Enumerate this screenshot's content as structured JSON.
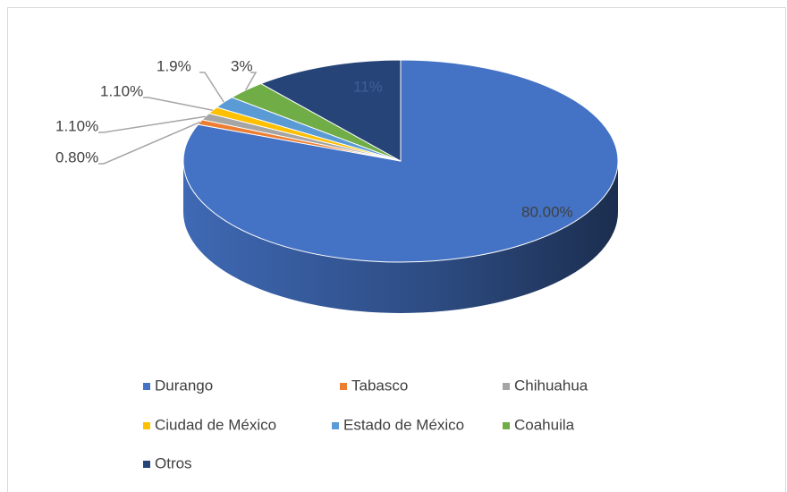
{
  "chart_data": {
    "type": "pie",
    "categories": [
      "Durango",
      "Tabasco",
      "Chihuahua",
      "Ciudad de México",
      "Estado de México",
      "Coahuila",
      "Otros"
    ],
    "values": [
      80,
      0.8,
      1.1,
      1.1,
      1.9,
      3,
      11
    ],
    "value_labels": [
      "80.00%",
      "0.80%",
      "1.10%",
      "1.10%",
      "1.9%",
      "3%",
      "11%"
    ],
    "colors": [
      "#4472c4",
      "#ed7d31",
      "#a5a5a5",
      "#ffc000",
      "#5b9bd5",
      "#70ad47",
      "#264478"
    ],
    "legend": "bottom"
  }
}
